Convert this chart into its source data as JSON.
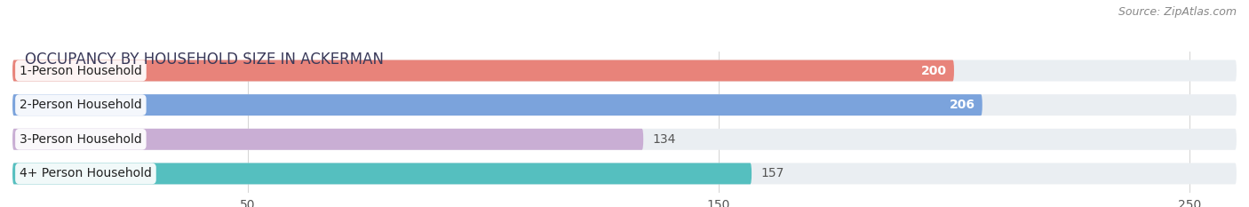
{
  "title": "OCCUPANCY BY HOUSEHOLD SIZE IN ACKERMAN",
  "source": "Source: ZipAtlas.com",
  "categories": [
    "1-Person Household",
    "2-Person Household",
    "3-Person Household",
    "4+ Person Household"
  ],
  "values": [
    200,
    206,
    134,
    157
  ],
  "bar_colors": [
    "#E8837A",
    "#7BA3DC",
    "#C9AED4",
    "#55BFBF"
  ],
  "background_color": "#ffffff",
  "bar_background_color": "#eaeef2",
  "xlim": [
    0,
    260
  ],
  "xticks": [
    50,
    150,
    250
  ],
  "label_colors": [
    "#ffffff",
    "#ffffff",
    "#666666",
    "#666666"
  ],
  "title_fontsize": 12,
  "source_fontsize": 9,
  "tick_fontsize": 10,
  "bar_label_fontsize": 10,
  "category_fontsize": 10
}
